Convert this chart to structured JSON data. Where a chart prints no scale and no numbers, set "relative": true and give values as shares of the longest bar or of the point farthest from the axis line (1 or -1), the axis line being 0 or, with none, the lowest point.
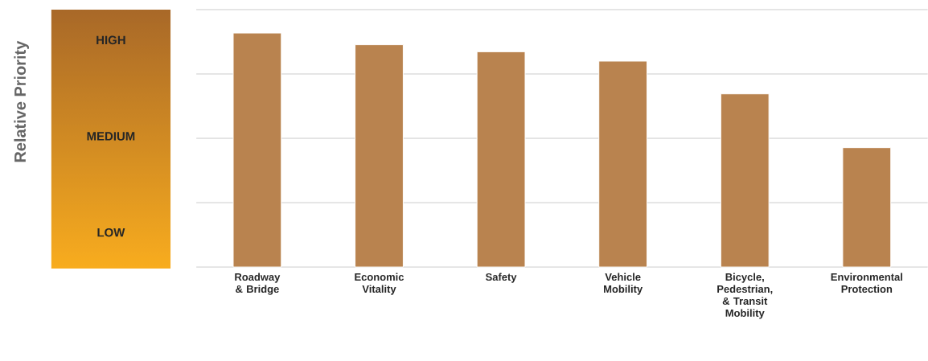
{
  "chart_data": {
    "type": "bar",
    "relative": true,
    "categories": [
      "Roadway & Bridge",
      "Economic Vitality",
      "Safety",
      "Vehicle Mobility",
      "Bicycle, Pedestrian, & Transit Mobility",
      "Environmental Protection"
    ],
    "values": [
      1,
      0.95,
      0.92,
      0.88,
      0.74,
      0.51
    ],
    "color": "#b9834f",
    "grid": true,
    "annotations": [
      "Relative Priority",
      "HIGH",
      "MEDIUM",
      "LOW"
    ]
  }
}
